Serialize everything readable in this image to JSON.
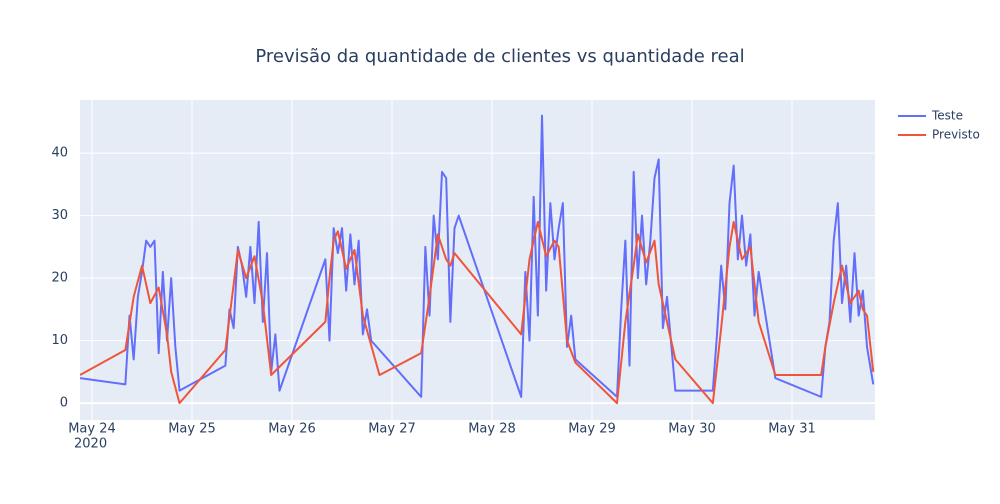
{
  "chart_data": {
    "type": "line",
    "title": "Previsão da quantidade de clientes vs quantidade real",
    "xlim": [
      "2020-05-23 21:07",
      "2020-05-31 19:55"
    ],
    "xticks": [
      {
        "value": "2020-05-24 00:00",
        "label": "May 24"
      },
      {
        "value": "2020-05-25 00:00",
        "label": "May 25"
      },
      {
        "value": "2020-05-26 00:00",
        "label": "May 26"
      },
      {
        "value": "2020-05-27 00:00",
        "label": "May 27"
      },
      {
        "value": "2020-05-28 00:00",
        "label": "May 28"
      },
      {
        "value": "2020-05-29 00:00",
        "label": "May 29"
      },
      {
        "value": "2020-05-30 00:00",
        "label": "May 30"
      },
      {
        "value": "2020-05-31 00:00",
        "label": "May 31"
      }
    ],
    "xtick_year": "2020",
    "ylim": [
      -2.7,
      48.5
    ],
    "yticks": [
      0,
      10,
      20,
      30,
      40
    ],
    "grid": true,
    "legend": "right",
    "series": [
      {
        "name": "Teste",
        "color": "#636efa",
        "x": [
          "2020-05-23 21:07",
          "2020-05-24 08:00",
          "2020-05-24 09:00",
          "2020-05-24 10:00",
          "2020-05-24 11:00",
          "2020-05-24 12:00",
          "2020-05-24 13:00",
          "2020-05-24 14:00",
          "2020-05-24 15:00",
          "2020-05-24 16:00",
          "2020-05-24 17:00",
          "2020-05-24 18:00",
          "2020-05-24 19:00",
          "2020-05-24 20:00",
          "2020-05-24 21:00",
          "2020-05-25 08:00",
          "2020-05-25 09:00",
          "2020-05-25 10:00",
          "2020-05-25 11:00",
          "2020-05-25 12:00",
          "2020-05-25 13:00",
          "2020-05-25 14:00",
          "2020-05-25 15:00",
          "2020-05-25 16:00",
          "2020-05-25 17:00",
          "2020-05-25 18:00",
          "2020-05-25 19:00",
          "2020-05-25 20:00",
          "2020-05-25 21:00",
          "2020-05-26 08:00",
          "2020-05-26 09:00",
          "2020-05-26 10:00",
          "2020-05-26 11:00",
          "2020-05-26 12:00",
          "2020-05-26 13:00",
          "2020-05-26 14:00",
          "2020-05-26 15:00",
          "2020-05-26 16:00",
          "2020-05-26 17:00",
          "2020-05-26 18:00",
          "2020-05-26 19:00",
          "2020-05-27 07:00",
          "2020-05-27 08:00",
          "2020-05-27 09:00",
          "2020-05-27 10:00",
          "2020-05-27 11:00",
          "2020-05-27 12:00",
          "2020-05-27 13:00",
          "2020-05-27 14:00",
          "2020-05-27 15:00",
          "2020-05-27 16:00",
          "2020-05-28 07:00",
          "2020-05-28 08:00",
          "2020-05-28 09:00",
          "2020-05-28 10:00",
          "2020-05-28 11:00",
          "2020-05-28 12:00",
          "2020-05-28 13:00",
          "2020-05-28 14:00",
          "2020-05-28 15:00",
          "2020-05-28 16:00",
          "2020-05-28 17:00",
          "2020-05-28 18:00",
          "2020-05-28 19:00",
          "2020-05-28 20:00",
          "2020-05-29 06:00",
          "2020-05-29 07:00",
          "2020-05-29 08:00",
          "2020-05-29 09:00",
          "2020-05-29 10:00",
          "2020-05-29 11:00",
          "2020-05-29 12:00",
          "2020-05-29 13:00",
          "2020-05-29 14:00",
          "2020-05-29 15:00",
          "2020-05-29 16:00",
          "2020-05-29 17:00",
          "2020-05-29 18:00",
          "2020-05-29 20:00",
          "2020-05-30 05:00",
          "2020-05-30 06:00",
          "2020-05-30 07:00",
          "2020-05-30 08:00",
          "2020-05-30 09:00",
          "2020-05-30 10:00",
          "2020-05-30 11:00",
          "2020-05-30 12:00",
          "2020-05-30 13:00",
          "2020-05-30 14:00",
          "2020-05-30 15:00",
          "2020-05-30 16:00",
          "2020-05-30 20:00",
          "2020-05-31 07:00",
          "2020-05-31 08:00",
          "2020-05-31 09:00",
          "2020-05-31 10:00",
          "2020-05-31 11:00",
          "2020-05-31 12:00",
          "2020-05-31 13:00",
          "2020-05-31 14:00",
          "2020-05-31 15:00",
          "2020-05-31 16:00",
          "2020-05-31 17:00",
          "2020-05-31 18:00",
          "2020-05-31 19:30"
        ],
        "values": [
          4,
          3,
          14,
          7,
          17,
          21,
          26,
          25,
          26,
          8,
          21,
          10,
          20,
          9,
          2,
          6,
          15,
          12,
          25,
          22,
          17,
          25,
          16,
          29,
          13,
          24,
          5,
          11,
          2,
          23,
          10,
          28,
          24,
          28,
          18,
          27,
          19,
          26,
          11,
          15,
          10,
          1,
          25,
          14,
          30,
          23,
          37,
          36,
          13,
          28,
          30,
          1,
          21,
          10,
          33,
          14,
          46,
          18,
          32,
          23,
          28,
          32,
          9,
          14,
          7,
          1,
          15,
          26,
          6,
          37,
          20,
          30,
          19,
          26,
          36,
          39,
          12,
          17,
          2,
          2,
          11,
          22,
          15,
          32,
          38,
          23,
          30,
          22,
          27,
          14,
          21,
          4,
          1,
          9,
          13,
          26,
          32,
          16,
          22,
          13,
          24,
          14,
          18,
          9,
          3
        ]
      },
      {
        "name": "Previsto",
        "color": "#ef553b",
        "x": [
          "2020-05-23 21:07",
          "2020-05-24 08:00",
          "2020-05-24 10:00",
          "2020-05-24 12:00",
          "2020-05-24 14:00",
          "2020-05-24 16:00",
          "2020-05-24 18:00",
          "2020-05-24 19:00",
          "2020-05-24 21:00",
          "2020-05-25 08:00",
          "2020-05-25 10:00",
          "2020-05-25 11:00",
          "2020-05-25 13:00",
          "2020-05-25 15:00",
          "2020-05-25 17:00",
          "2020-05-25 19:00",
          "2020-05-26 08:00",
          "2020-05-26 09:00",
          "2020-05-26 10:00",
          "2020-05-26 11:00",
          "2020-05-26 13:00",
          "2020-05-26 15:00",
          "2020-05-26 17:00",
          "2020-05-26 21:00",
          "2020-05-27 07:00",
          "2020-05-27 09:00",
          "2020-05-27 11:00",
          "2020-05-27 13:00",
          "2020-05-27 14:00",
          "2020-05-27 15:00",
          "2020-05-28 07:00",
          "2020-05-28 09:00",
          "2020-05-28 11:00",
          "2020-05-28 13:00",
          "2020-05-28 15:00",
          "2020-05-28 16:00",
          "2020-05-28 18:00",
          "2020-05-28 20:00",
          "2020-05-29 06:00",
          "2020-05-29 08:00",
          "2020-05-29 10:00",
          "2020-05-29 11:00",
          "2020-05-29 13:00",
          "2020-05-29 15:00",
          "2020-05-29 16:00",
          "2020-05-29 20:00",
          "2020-05-30 05:00",
          "2020-05-30 07:00",
          "2020-05-30 09:00",
          "2020-05-30 10:00",
          "2020-05-30 12:00",
          "2020-05-30 14:00",
          "2020-05-30 16:00",
          "2020-05-30 20:00",
          "2020-05-31 07:00",
          "2020-05-31 08:00",
          "2020-05-31 10:00",
          "2020-05-31 12:00",
          "2020-05-31 14:00",
          "2020-05-31 16:00",
          "2020-05-31 17:00",
          "2020-05-31 18:00",
          "2020-05-31 19:30"
        ],
        "values": [
          4.5,
          8.5,
          17,
          22,
          16,
          18.5,
          11,
          5,
          0,
          8.5,
          19,
          24.5,
          20,
          23.5,
          16,
          4.5,
          13,
          20,
          26,
          27.5,
          21.5,
          24.5,
          14,
          4.5,
          8,
          17,
          27,
          23,
          22,
          24,
          11,
          23,
          29,
          23.5,
          26,
          25,
          10,
          6.5,
          0,
          13,
          22,
          27,
          22.5,
          26,
          19,
          7,
          0,
          12,
          25,
          29,
          23,
          25,
          13,
          4.5,
          4.5,
          9,
          16,
          22,
          16,
          18,
          15,
          14,
          5
        ]
      }
    ]
  }
}
